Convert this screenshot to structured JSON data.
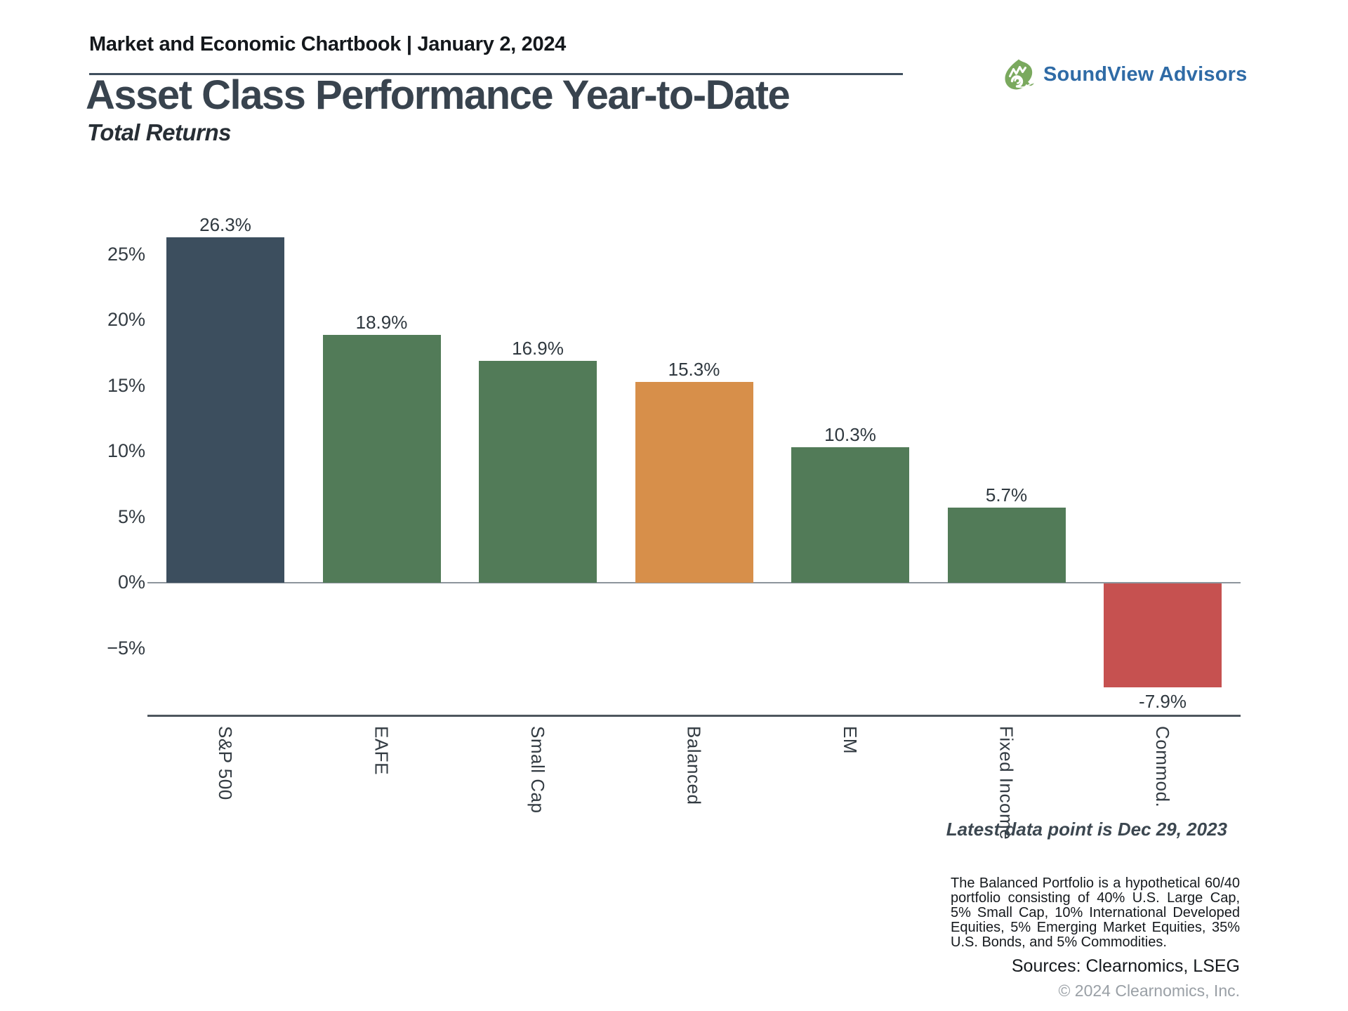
{
  "header": {
    "text": "Market and Economic Chartbook | January 2, 2024"
  },
  "logo": {
    "name": "SoundView Advisors",
    "icon": "leaf-swirl-icon",
    "text_color": "#2f6ba6",
    "leaf_color": "#7aa95e"
  },
  "title": "Asset Class Performance Year-to-Date",
  "subtitle": "Total Returns",
  "chart_data": {
    "type": "bar",
    "categories": [
      "S&P 500",
      "EAFE",
      "Small Cap",
      "Balanced",
      "EM",
      "Fixed Income",
      "Commod."
    ],
    "values": [
      26.3,
      18.9,
      16.9,
      15.3,
      10.3,
      5.7,
      -7.9
    ],
    "value_labels": [
      "26.3%",
      "18.9%",
      "16.9%",
      "15.3%",
      "10.3%",
      "5.7%",
      "-7.9%"
    ],
    "bar_colors": [
      "#3c4e5e",
      "#527b58",
      "#527b58",
      "#d78f4a",
      "#527b58",
      "#527b58",
      "#c65150"
    ],
    "color_legend": {
      "navy": "#3c4e5e",
      "green": "#527b58",
      "orange": "#d78f4a",
      "red": "#c65150"
    },
    "title": "Asset Class Performance Year-to-Date",
    "subtitle": "Total Returns",
    "xlabel": "",
    "ylabel": "",
    "ylim": [
      -10,
      28
    ],
    "grid": false,
    "legend_position": "none",
    "yticks": [
      {
        "value": 25,
        "label": "25%"
      },
      {
        "value": 20,
        "label": "20%"
      },
      {
        "value": 15,
        "label": "15%"
      },
      {
        "value": 10,
        "label": "10%"
      },
      {
        "value": 5,
        "label": "5%"
      },
      {
        "value": 0,
        "label": "0%"
      },
      {
        "value": -5,
        "label": "−5%"
      }
    ],
    "annotation": "Latest data point is Dec 29, 2023"
  },
  "footer": {
    "note": "The Balanced Portfolio is a hypothetical 60/40 portfolio consisting of 40% U.S. Large Cap, 5% Small Cap, 10% International Developed Equities, 5% Emerging Market Equities, 35% U.S. Bonds, and 5% Commodities.",
    "sources": "Sources: Clearnomics, LSEG",
    "copyright": "© 2024 Clearnomics, Inc."
  }
}
